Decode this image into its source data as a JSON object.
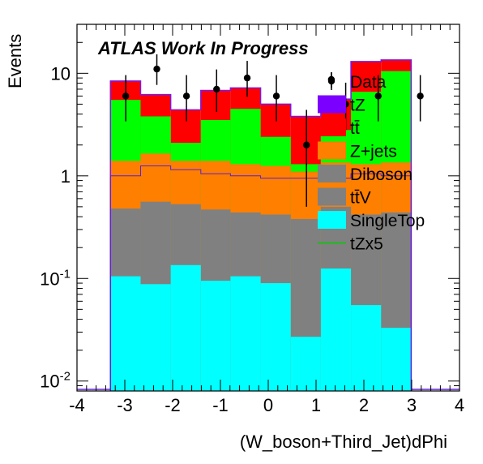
{
  "chart_data": {
    "type": "bar",
    "stacked": true,
    "label": "ATLAS Work In Progress",
    "xlabel": "(W_boson+Third_Jet)dPhi",
    "ylabel": "Events",
    "xlim": [
      -4,
      4
    ],
    "ylim": [
      0.008,
      30
    ],
    "yscale": "log",
    "grid": false,
    "legend_position": "top-right",
    "x_ticks": [
      -4,
      -3,
      -2,
      -1,
      0,
      1,
      2,
      3,
      4
    ],
    "y_ticks": [
      {
        "value": 0.01,
        "base": "10",
        "exp": "-2"
      },
      {
        "value": 0.1,
        "base": "10",
        "exp": "-1"
      },
      {
        "value": 1,
        "base": "1",
        "exp": ""
      },
      {
        "value": 10,
        "base": "10",
        "exp": ""
      }
    ],
    "bin_edges": [
      -3.3,
      -2.67,
      -2.04,
      -1.41,
      -0.79,
      -0.16,
      0.47,
      1.1,
      1.73,
      2.36,
      2.99
    ],
    "stack_tops": [
      {
        "name": "SingleTop",
        "color": "#00ffff",
        "values": [
          0.105,
          0.088,
          0.135,
          0.095,
          0.105,
          0.09,
          0.027,
          0.125,
          0.055,
          0.033
        ]
      },
      {
        "name": "Diboson",
        "color": "#808080",
        "values": [
          0.48,
          0.56,
          0.53,
          0.47,
          0.44,
          0.42,
          0.38,
          0.5,
          0.42,
          0.44
        ]
      },
      {
        "name": "Z+jets",
        "color": "#ff7f00",
        "values": [
          1.4,
          1.65,
          1.4,
          1.4,
          1.3,
          1.25,
          1.1,
          1.35,
          1.3,
          1.35
        ]
      },
      {
        "name": "tt̄",
        "color": "#00ff00",
        "values": [
          5.5,
          3.8,
          2.1,
          3.5,
          4.5,
          2.4,
          1.3,
          2.8,
          6.6,
          10.5
        ]
      },
      {
        "name": "tZ",
        "color": "#ff0000",
        "values": [
          8.4,
          6.2,
          4.4,
          6.8,
          7.2,
          5.0,
          3.8,
          5.6,
          13.0,
          13.5
        ]
      }
    ],
    "signal_line": {
      "name": "tZx5",
      "color": "#7b18e8",
      "values": [
        8.4,
        6.2,
        4.4,
        6.8,
        7.2,
        5.0,
        3.8,
        5.6,
        13.0,
        13.5
      ]
    },
    "ttv_line_values": [
      1.0,
      1.25,
      1.15,
      1.05,
      1.0,
      0.95,
      0.95,
      0.95,
      1.05,
      1.0
    ],
    "data": {
      "name": "Data",
      "x": [
        -2.98,
        -2.33,
        -1.71,
        -1.08,
        -0.44,
        0.17,
        0.8,
        1.32,
        1.62,
        2.3,
        3.18
      ],
      "y": [
        6,
        11,
        6,
        7,
        9,
        6,
        2,
        8.7,
        5,
        6,
        6
      ],
      "err_low": [
        2.6,
        3.3,
        2.6,
        2.8,
        3.1,
        2.6,
        1.5,
        1.5,
        2.2,
        2.6,
        2.6
      ],
      "err_high": [
        3.6,
        4.3,
        3.6,
        3.9,
        4.2,
        3.6,
        2.4,
        1.5,
        3.1,
        3.6,
        3.6
      ]
    },
    "legend": [
      {
        "label": "Data",
        "kind": "marker",
        "color": "#000000"
      },
      {
        "label": "tZ",
        "kind": "box",
        "color": "#7b00ff"
      },
      {
        "label": "tt̄",
        "kind": "box",
        "color": "#ff0000"
      },
      {
        "label": "Z+jets",
        "kind": "box",
        "color": "#ff7f00"
      },
      {
        "label": "Diboson",
        "kind": "box",
        "color": "#808080"
      },
      {
        "label": "tt̄V",
        "kind": "box",
        "color": "#808080"
      },
      {
        "label": "SingleTop",
        "kind": "box",
        "color": "#00ffff"
      },
      {
        "label": "tZx5",
        "kind": "line",
        "color": "#00cc00"
      }
    ]
  }
}
